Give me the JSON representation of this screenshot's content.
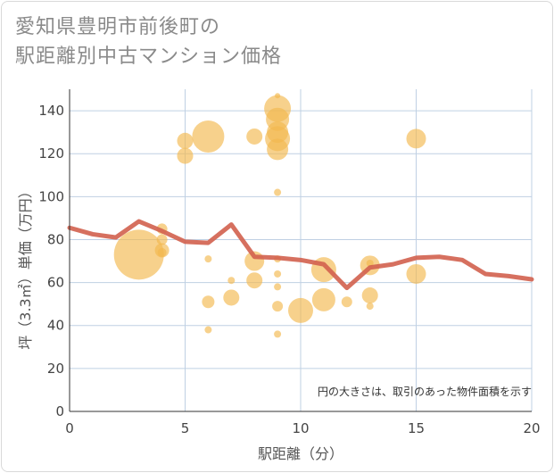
{
  "title": "愛知県豊明市前後町の\n駅距離別中古マンション価格",
  "chart_data": {
    "type": "scatter",
    "xlabel": "駅距離（分）",
    "ylabel": "坪（3.3㎡）単価（万円）",
    "note": "円の大きさは、取引のあった物件面積を示す",
    "xlim": [
      0,
      20
    ],
    "ylim": [
      0,
      150
    ],
    "xticks": [
      "0",
      "5",
      "10",
      "15",
      "20"
    ],
    "yticks": [
      "0",
      "20",
      "40",
      "60",
      "80",
      "100",
      "120",
      "140"
    ],
    "grid": true,
    "colors": {
      "bubble": "#f3b84e",
      "line": "#d2604e",
      "grid": "#bfd0e3"
    },
    "bubbles": [
      {
        "x": 3,
        "y": 73,
        "s": 28
      },
      {
        "x": 4,
        "y": 85,
        "s": 6
      },
      {
        "x": 4,
        "y": 80,
        "s": 6
      },
      {
        "x": 4,
        "y": 75,
        "s": 8
      },
      {
        "x": 4,
        "y": 74,
        "s": 5
      },
      {
        "x": 5,
        "y": 126,
        "s": 9
      },
      {
        "x": 5,
        "y": 119,
        "s": 9
      },
      {
        "x": 6,
        "y": 128,
        "s": 18
      },
      {
        "x": 6,
        "y": 71,
        "s": 4
      },
      {
        "x": 6,
        "y": 51,
        "s": 7
      },
      {
        "x": 6,
        "y": 38,
        "s": 4
      },
      {
        "x": 7,
        "y": 61,
        "s": 4
      },
      {
        "x": 7,
        "y": 53,
        "s": 9
      },
      {
        "x": 8,
        "y": 128,
        "s": 9
      },
      {
        "x": 8,
        "y": 70,
        "s": 11
      },
      {
        "x": 8,
        "y": 61,
        "s": 9
      },
      {
        "x": 9,
        "y": 147,
        "s": 3
      },
      {
        "x": 9,
        "y": 141,
        "s": 15
      },
      {
        "x": 9,
        "y": 136,
        "s": 13
      },
      {
        "x": 9,
        "y": 130,
        "s": 12
      },
      {
        "x": 9,
        "y": 127,
        "s": 14
      },
      {
        "x": 9,
        "y": 122,
        "s": 12
      },
      {
        "x": 9,
        "y": 102,
        "s": 4
      },
      {
        "x": 9,
        "y": 71,
        "s": 4
      },
      {
        "x": 9,
        "y": 64,
        "s": 4
      },
      {
        "x": 9,
        "y": 58,
        "s": 4
      },
      {
        "x": 9,
        "y": 49,
        "s": 6
      },
      {
        "x": 9,
        "y": 36,
        "s": 4
      },
      {
        "x": 10,
        "y": 47,
        "s": 14
      },
      {
        "x": 11,
        "y": 66,
        "s": 14
      },
      {
        "x": 11,
        "y": 52,
        "s": 13
      },
      {
        "x": 12,
        "y": 51,
        "s": 6
      },
      {
        "x": 13,
        "y": 69,
        "s": 4
      },
      {
        "x": 13,
        "y": 68,
        "s": 11
      },
      {
        "x": 13,
        "y": 54,
        "s": 9
      },
      {
        "x": 13,
        "y": 49,
        "s": 4
      },
      {
        "x": 15,
        "y": 127,
        "s": 11
      },
      {
        "x": 15,
        "y": 64,
        "s": 11
      }
    ],
    "trend": {
      "x": [
        0,
        1,
        2,
        3,
        4,
        5,
        6,
        7,
        8,
        9,
        10,
        11,
        12,
        13,
        14,
        15,
        16,
        17,
        18,
        19,
        20
      ],
      "y": [
        85.5,
        82.5,
        81,
        88.5,
        84,
        79,
        78.5,
        87,
        72,
        71.5,
        70.5,
        68.5,
        57.5,
        67,
        68.5,
        71.5,
        72,
        70.5,
        64,
        63,
        61.5
      ]
    }
  }
}
